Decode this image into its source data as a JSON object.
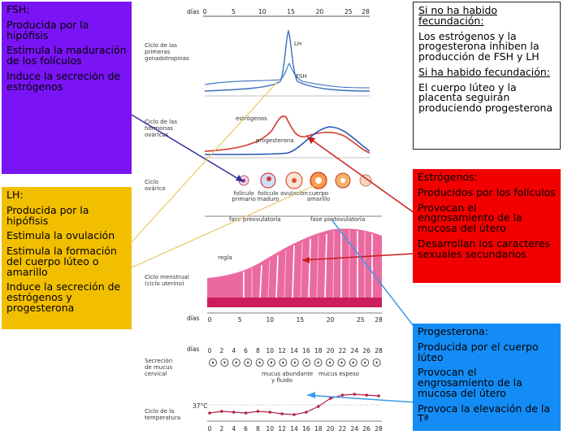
{
  "fsh": {
    "title": "FSH:",
    "items": [
      "Producida por la hipófisis",
      "Estimula la maduración de los folículos",
      "Induce la secreción de estrógenos"
    ]
  },
  "lh": {
    "title": "LH:",
    "items": [
      "Producida por la hipófisis",
      "Estimula la ovulación",
      "Estimula la formación del cuerpo lúteo o amarillo",
      "Induce la secreción de estrógenos y progesterona"
    ]
  },
  "fecundacion": {
    "no_title": "Si no ha habido fecundación:",
    "no_text": "Los estrógenos y la progesterona inhiben la producción de FSH y LH",
    "si_title": "Si ha habido fecundación:",
    "si_text": "El cuerpo lúteo y la placenta seguirán produciendo progesterona"
  },
  "estrogenos": {
    "title": "Estrógenos:",
    "items": [
      "Producidos por los folículos",
      "Provocan el engrosamiento de la mucosa del útero",
      "Desarrollan los caracteres sexuales secundarios"
    ]
  },
  "progesterona": {
    "title": "Progesterona:",
    "items": [
      "Producida por el cuerpo lúteo",
      "Provocan el engrosamiento de la mucosa del útero",
      "Provoca la elevación de la Tª"
    ]
  },
  "diagram": {
    "dias_label": "días",
    "top_ticks": [
      "0",
      "5",
      "10",
      "15",
      "20",
      "25",
      "28"
    ],
    "row_labels": {
      "gonadotropinas": "Ciclo de las primeras gonadotropinas",
      "ovaricas": "Ciclo de las hormonas ováricas",
      "ovarico": "Ciclo ovárico",
      "menstrual": "Ciclo menstrual (ciclo uterino)",
      "mucus": "Secreción de mucus cervical",
      "temperatura": "Ciclo de la temperatura"
    },
    "curve_labels": {
      "lh": "LH",
      "fsh": "FSH",
      "estrogenos": "estrógenos",
      "progesterona": "progesterona"
    },
    "ovary_labels": [
      "folículo primario",
      "folículo maduro",
      "ovulación",
      "cuerpo amarillo"
    ],
    "phases": {
      "pre": "fase preovulatoria",
      "post": "fase postovulatoria"
    },
    "regla": "regla",
    "bottom_ticks": [
      "0",
      "2",
      "4",
      "6",
      "8",
      "10",
      "12",
      "14",
      "16",
      "18",
      "20",
      "22",
      "24",
      "26",
      "28"
    ],
    "mid_ticks": [
      "0",
      "5",
      "10",
      "15",
      "20",
      "25",
      "28"
    ],
    "mucus_labels": {
      "abundante": "mucus abundante y fluido",
      "espeso": "mucus espeso"
    },
    "temp_label": "37°C",
    "colors": {
      "lh": "#3a6fc0",
      "fsh": "#3a6fc0",
      "estrogenos": "#d23a2a",
      "progesterona": "#2a56b8",
      "uterus": "#e23a86",
      "temperature": "#b22244"
    }
  }
}
